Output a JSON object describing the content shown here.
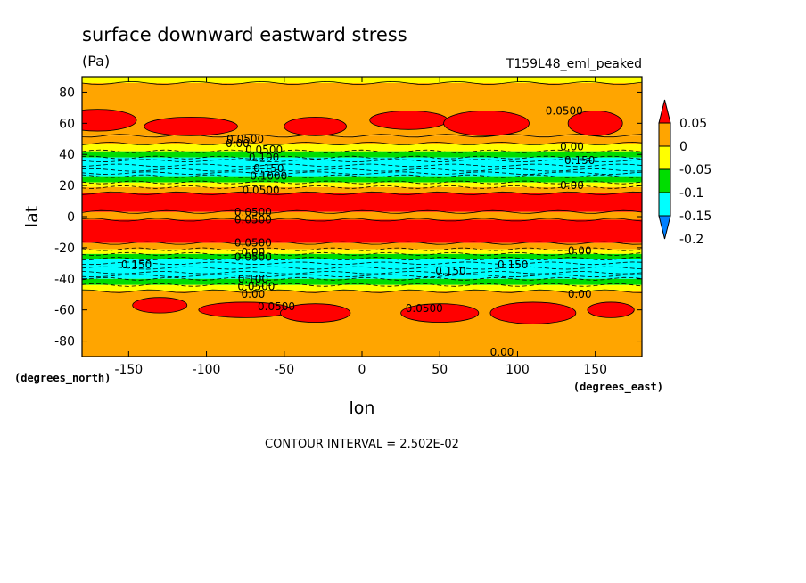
{
  "chart_data": {
    "type": "heatmap",
    "title": "surface downward eastward stress",
    "units": "(Pa)",
    "dataset": "T159L48_eml_peaked",
    "xlabel": "lon",
    "ylabel": "lat",
    "x_units": "(degrees_east)",
    "y_units": "(degrees_north)",
    "xlim": [
      -180,
      180
    ],
    "ylim": [
      -90,
      90
    ],
    "x_ticks": [
      -150,
      -100,
      -50,
      0,
      50,
      100,
      150
    ],
    "y_ticks": [
      -80,
      -60,
      -40,
      -20,
      0,
      20,
      40,
      60,
      80
    ],
    "footer": "CONTOUR INTERVAL = 2.502E-02",
    "colorbar": {
      "labels": [
        "0.05",
        "0",
        "-0.05",
        "-0.1",
        "-0.15",
        "-0.2"
      ],
      "bins": [
        {
          "color": "#ff0000"
        },
        {
          "color": "#ffa500"
        },
        {
          "color": "#ffff00"
        },
        {
          "color": "#00dd00"
        },
        {
          "color": "#00ffff"
        },
        {
          "color": "#0080ff"
        }
      ]
    },
    "zonal_bands": [
      {
        "lat_from": 90,
        "lat_to": 86,
        "color": "#ffff00"
      },
      {
        "lat_from": 86,
        "lat_to": 52,
        "color": "#ffa500"
      },
      {
        "lat_from": 52,
        "lat_to": 47,
        "color": "#ffa500"
      },
      {
        "lat_from": 47,
        "lat_to": 42,
        "color": "#ffff00"
      },
      {
        "lat_from": 42,
        "lat_to": 38,
        "color": "#00dd00"
      },
      {
        "lat_from": 38,
        "lat_to": 26,
        "color": "#00ffff"
      },
      {
        "lat_from": 26,
        "lat_to": 22,
        "color": "#00dd00"
      },
      {
        "lat_from": 22,
        "lat_to": 19,
        "color": "#ffff00"
      },
      {
        "lat_from": 19,
        "lat_to": 15,
        "color": "#ffa500"
      },
      {
        "lat_from": 15,
        "lat_to": 3,
        "color": "#ff0000"
      },
      {
        "lat_from": 3,
        "lat_to": -2,
        "color": "#ffa500"
      },
      {
        "lat_from": -2,
        "lat_to": -17,
        "color": "#ff0000"
      },
      {
        "lat_from": -17,
        "lat_to": -21,
        "color": "#ffa500"
      },
      {
        "lat_from": -21,
        "lat_to": -24,
        "color": "#ffff00"
      },
      {
        "lat_from": -24,
        "lat_to": -27,
        "color": "#00dd00"
      },
      {
        "lat_from": -27,
        "lat_to": -40,
        "color": "#00ffff"
      },
      {
        "lat_from": -40,
        "lat_to": -44,
        "color": "#00dd00"
      },
      {
        "lat_from": -44,
        "lat_to": -48,
        "color": "#ffff00"
      },
      {
        "lat_from": -48,
        "lat_to": -90,
        "color": "#ffa500"
      }
    ],
    "patches": [
      {
        "lon": -170,
        "lat": 62,
        "w": 50,
        "h": 14,
        "color": "#ff0000"
      },
      {
        "lon": -110,
        "lat": 58,
        "w": 60,
        "h": 12,
        "color": "#ff0000"
      },
      {
        "lon": -30,
        "lat": 58,
        "w": 40,
        "h": 12,
        "color": "#ff0000"
      },
      {
        "lon": 30,
        "lat": 62,
        "w": 50,
        "h": 12,
        "color": "#ff0000"
      },
      {
        "lon": 80,
        "lat": 60,
        "w": 55,
        "h": 16,
        "color": "#ff0000"
      },
      {
        "lon": 150,
        "lat": 60,
        "w": 35,
        "h": 16,
        "color": "#ff0000"
      },
      {
        "lon": -130,
        "lat": -57,
        "w": 35,
        "h": 10,
        "color": "#ff0000"
      },
      {
        "lon": -75,
        "lat": -60,
        "w": 60,
        "h": 10,
        "color": "#ff0000"
      },
      {
        "lon": -30,
        "lat": -62,
        "w": 45,
        "h": 12,
        "color": "#ff0000"
      },
      {
        "lon": 50,
        "lat": -62,
        "w": 50,
        "h": 12,
        "color": "#ff0000"
      },
      {
        "lon": 110,
        "lat": -62,
        "w": 55,
        "h": 14,
        "color": "#ff0000"
      },
      {
        "lon": 160,
        "lat": -60,
        "w": 30,
        "h": 10,
        "color": "#ff0000"
      }
    ],
    "contour_labels": [
      {
        "text": "0.0500",
        "lon": 130,
        "lat": 68
      },
      {
        "text": "0.0500",
        "lon": -75,
        "lat": 50
      },
      {
        "text": "0.00",
        "lon": -80,
        "lat": 47
      },
      {
        "text": "0.0500",
        "lon": -63,
        "lat": 43
      },
      {
        "text": "0.100",
        "lon": -63,
        "lat": 38
      },
      {
        "text": "0.150",
        "lon": -60,
        "lat": 31
      },
      {
        "text": "0.1000",
        "lon": -60,
        "lat": 26
      },
      {
        "text": "0.0500",
        "lon": -65,
        "lat": 17
      },
      {
        "text": "0.00",
        "lon": 135,
        "lat": 45
      },
      {
        "text": "0.150",
        "lon": 140,
        "lat": 36
      },
      {
        "text": "0.00",
        "lon": 135,
        "lat": 20
      },
      {
        "text": "0.0500",
        "lon": -70,
        "lat": 3
      },
      {
        "text": "0.0500",
        "lon": -70,
        "lat": -2
      },
      {
        "text": "0.0500",
        "lon": -70,
        "lat": -17
      },
      {
        "text": "0.00",
        "lon": -70,
        "lat": -23
      },
      {
        "text": "0.0500",
        "lon": -70,
        "lat": -26
      },
      {
        "text": "0.150",
        "lon": -145,
        "lat": -31
      },
      {
        "text": "0.150",
        "lon": 57,
        "lat": -35
      },
      {
        "text": "0.150",
        "lon": 97,
        "lat": -31
      },
      {
        "text": "0.00",
        "lon": 140,
        "lat": -22
      },
      {
        "text": "0.100",
        "lon": -70,
        "lat": -40
      },
      {
        "text": "0.0500",
        "lon": -68,
        "lat": -45
      },
      {
        "text": "0.00",
        "lon": -70,
        "lat": -50
      },
      {
        "text": "0.00",
        "lon": 140,
        "lat": -50
      },
      {
        "text": "0.0500",
        "lon": -55,
        "lat": -58
      },
      {
        "text": "0.0500",
        "lon": 40,
        "lat": -59
      },
      {
        "text": "0.00",
        "lon": 90,
        "lat": -87
      }
    ]
  }
}
